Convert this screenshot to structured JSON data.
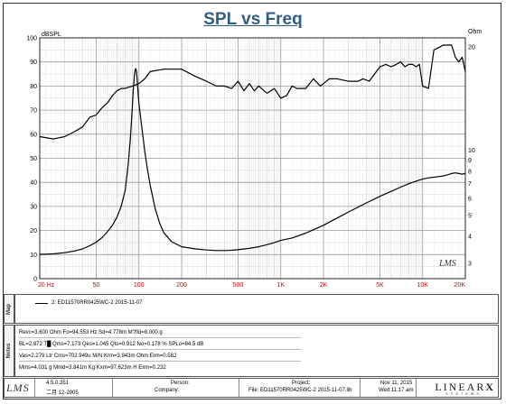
{
  "chart_data": {
    "type": "line",
    "title": "SPL vs Freq",
    "ylabel_left": "dBSPL",
    "ylabel_right": "Ohm",
    "x_scale": "log",
    "xlim": [
      20,
      20000
    ],
    "ylim_left": [
      0,
      100
    ],
    "y_right_ticks": [
      "Ohm",
      "20",
      "10",
      "9",
      "8",
      "7",
      "6",
      "5",
      "4",
      "3"
    ],
    "x_ticks": [
      "20 Hz",
      "50",
      "100",
      "200",
      "500",
      "1K",
      "2K",
      "5K",
      "10K",
      "20K"
    ],
    "y_ticks_left": [
      "100",
      "90",
      "80",
      "70",
      "60",
      "50",
      "40",
      "30",
      "20",
      "10",
      "0"
    ],
    "grid": true,
    "series": [
      {
        "name": "SPL",
        "axis": "left",
        "x": [
          20,
          25,
          30,
          35,
          40,
          45,
          50,
          55,
          60,
          65,
          70,
          75,
          80,
          90,
          100,
          110,
          120,
          150,
          200,
          250,
          300,
          350,
          400,
          450,
          500,
          550,
          600,
          650,
          700,
          800,
          900,
          1000,
          1100,
          1200,
          1300,
          1500,
          1700,
          1900,
          2000,
          2200,
          2500,
          3000,
          3500,
          3800,
          4200,
          5000,
          5500,
          6000,
          6500,
          7000,
          7500,
          8000,
          8500,
          9000,
          9500,
          10000,
          11000,
          12000,
          13000,
          14000,
          15000,
          16000,
          17000,
          18000,
          19000,
          20000
        ],
        "y": [
          59,
          58,
          59,
          61,
          63,
          67,
          68,
          71,
          73,
          76,
          78,
          79,
          79,
          80,
          81,
          83,
          86,
          87,
          87,
          84,
          82,
          80,
          80,
          79,
          82,
          78,
          81,
          78,
          80,
          77,
          79,
          75,
          76,
          80,
          79,
          79,
          83,
          80,
          81,
          83,
          83,
          82,
          82,
          83,
          82,
          88,
          89,
          88,
          89,
          90,
          88,
          89,
          89,
          88,
          89,
          80,
          79,
          95,
          96,
          97,
          97,
          97,
          92,
          90,
          92,
          86
        ]
      },
      {
        "name": "Impedance",
        "axis": "right",
        "x": [
          20,
          25,
          30,
          35,
          40,
          45,
          50,
          55,
          60,
          65,
          70,
          75,
          80,
          84,
          87,
          89,
          90,
          91,
          92,
          93,
          94,
          95,
          96,
          97,
          98,
          100,
          105,
          110,
          115,
          120,
          130,
          140,
          150,
          170,
          200,
          250,
          300,
          350,
          400,
          450,
          500,
          600,
          700,
          800,
          900,
          1000,
          1200,
          1500,
          2000,
          2500,
          3000,
          4000,
          5000,
          6000,
          7000,
          8000,
          9000,
          10000,
          11000,
          12000,
          13000,
          14000,
          15000,
          16000,
          17000,
          18000,
          19000,
          20000
        ],
        "y": [
          3.3,
          3.32,
          3.36,
          3.42,
          3.5,
          3.62,
          3.76,
          3.95,
          4.2,
          4.5,
          4.9,
          5.5,
          6.5,
          8.6,
          11.2,
          14.2,
          16.3,
          18.5,
          20.5,
          22.2,
          23.3,
          23.8,
          23.2,
          21.5,
          19.5,
          16.5,
          12.6,
          9.9,
          8.1,
          6.9,
          5.4,
          4.6,
          4.15,
          3.78,
          3.58,
          3.5,
          3.46,
          3.44,
          3.44,
          3.45,
          3.47,
          3.52,
          3.58,
          3.66,
          3.74,
          3.83,
          3.93,
          4.14,
          4.5,
          4.86,
          5.18,
          5.7,
          6.12,
          6.45,
          6.75,
          7.0,
          7.2,
          7.35,
          7.45,
          7.5,
          7.55,
          7.6,
          7.7,
          7.8,
          7.85,
          7.8,
          7.75,
          7.8
        ]
      }
    ]
  },
  "map": {
    "label": "Map",
    "entry": "2: ED11570RR0425WC-2  2015-11-07"
  },
  "notes": {
    "label": "Notes",
    "lines": [
      "Revc=3.600 Ohm  Fo=94.553 Hz  Sd=4.778m M?fld=8.000 g",
      "BL=2.872 T█  Qms=7.173  Qes=1.045  Qts=0.912  No=0.178 %  SPLo=84.5 dB",
      "Vas=2.279 Ltr  Cms=702.949u M/N  Krm=3.943m Ohm  Erm=0.582",
      "Mms=4.031 g  Mmd=3.841m Kg  Kxm=97.623m H  Exm=0.232"
    ]
  },
  "footer": {
    "logo": "LMS",
    "version": "4.5.0.351",
    "version_date": "二月 12-2005",
    "person_label": "Person:",
    "company_label": "Company:",
    "project_label": "Project:",
    "file": "File: ED11570RR0425WC-2  2015-11-07.lib",
    "date": "Nov 11, 2015",
    "time": "Wed 11:17 am",
    "brand": "LINEAR",
    "brand_mark": "X",
    "brand_sub": "SYSTEMS"
  },
  "watermark": "LMS",
  "colors": {
    "title": "#2f5d86",
    "x_tick": "#b01010",
    "grid": "#c8c8c8",
    "curve": "#000000"
  }
}
